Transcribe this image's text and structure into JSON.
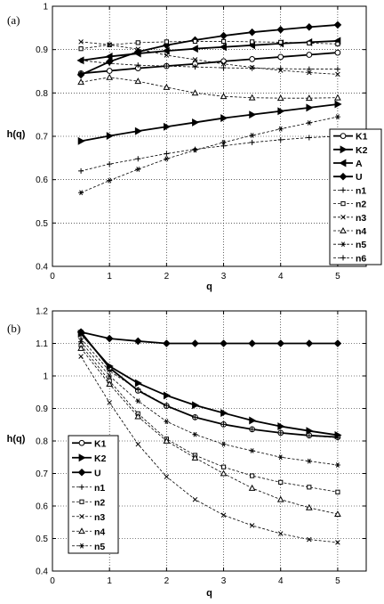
{
  "chart_data": [
    {
      "type": "line",
      "panel_label": "(a)",
      "xlabel": "q",
      "ylabel": "h(q)",
      "xlim": [
        0,
        5.5
      ],
      "ylim": [
        0.4,
        1.0
      ],
      "x_ticks": [
        "0",
        "1",
        "2",
        "3",
        "4",
        "5"
      ],
      "y_ticks": [
        "0.4",
        "0.5",
        "0.6",
        "0.7",
        "0.8",
        "0.9",
        "1"
      ],
      "grid": true,
      "legend": "right",
      "x": [
        0.5,
        1,
        1.5,
        2,
        2.5,
        3,
        3.5,
        4,
        4.5,
        5
      ],
      "series": [
        {
          "name": "K1",
          "marker": "circle",
          "style": "solid",
          "values": [
            0.845,
            0.851,
            0.857,
            0.862,
            0.867,
            0.873,
            0.878,
            0.883,
            0.888,
            0.893
          ]
        },
        {
          "name": "K2",
          "marker": "tri-right",
          "style": "solid",
          "values": [
            0.689,
            0.701,
            0.712,
            0.722,
            0.732,
            0.742,
            0.75,
            0.758,
            0.766,
            0.774
          ]
        },
        {
          "name": "A",
          "marker": "tri-left",
          "style": "solid",
          "values": [
            0.875,
            0.884,
            0.891,
            0.897,
            0.902,
            0.906,
            0.91,
            0.914,
            0.917,
            0.92
          ]
        },
        {
          "name": "U",
          "marker": "diamond",
          "style": "solid",
          "values": [
            0.842,
            0.872,
            0.895,
            0.91,
            0.922,
            0.932,
            0.94,
            0.946,
            0.952,
            0.957
          ]
        },
        {
          "name": "n1",
          "marker": "plus",
          "style": "dashed",
          "values": [
            0.875,
            0.868,
            0.864,
            0.862,
            0.86,
            0.858,
            0.857,
            0.856,
            0.855,
            0.855
          ]
        },
        {
          "name": "n2",
          "marker": "square",
          "style": "dashed",
          "values": [
            0.902,
            0.911,
            0.916,
            0.918,
            0.919,
            0.919,
            0.918,
            0.917,
            0.915,
            0.913
          ]
        },
        {
          "name": "n3",
          "marker": "x",
          "style": "dashed",
          "values": [
            0.918,
            0.911,
            0.901,
            0.887,
            0.877,
            0.867,
            0.859,
            0.852,
            0.847,
            0.843
          ]
        },
        {
          "name": "n4",
          "marker": "tri-up",
          "style": "dashed",
          "values": [
            0.825,
            0.836,
            0.827,
            0.813,
            0.8,
            0.792,
            0.789,
            0.788,
            0.788,
            0.789
          ]
        },
        {
          "name": "n5",
          "marker": "star",
          "style": "dashed",
          "values": [
            0.57,
            0.598,
            0.624,
            0.648,
            0.668,
            0.686,
            0.702,
            0.717,
            0.731,
            0.745
          ]
        },
        {
          "name": "n6",
          "marker": "plus",
          "style": "dashed",
          "values": [
            0.62,
            0.636,
            0.648,
            0.66,
            0.67,
            0.678,
            0.686,
            0.692,
            0.697,
            0.7
          ]
        }
      ]
    },
    {
      "type": "line",
      "panel_label": "(b)",
      "xlabel": "q",
      "ylabel": "h(q)",
      "xlim": [
        0,
        5.5
      ],
      "ylim": [
        0.4,
        1.2
      ],
      "x_ticks": [
        "0",
        "1",
        "2",
        "3",
        "4",
        "5"
      ],
      "y_ticks": [
        "0.4",
        "0.5",
        "0.6",
        "0.7",
        "0.8",
        "0.9",
        "1",
        "1.1",
        "1.2"
      ],
      "grid": true,
      "legend": "left",
      "x": [
        0.5,
        1,
        1.5,
        2,
        2.5,
        3,
        3.5,
        4,
        4.5,
        5
      ],
      "series": [
        {
          "name": "K1",
          "marker": "circle",
          "style": "solid",
          "values": [
            1.135,
            1.025,
            0.955,
            0.908,
            0.873,
            0.851,
            0.836,
            0.825,
            0.817,
            0.812
          ]
        },
        {
          "name": "K2",
          "marker": "tri-right",
          "style": "solid",
          "values": [
            1.13,
            1.03,
            0.978,
            0.94,
            0.91,
            0.886,
            0.863,
            0.845,
            0.831,
            0.818
          ]
        },
        {
          "name": "U",
          "marker": "diamond",
          "style": "solid",
          "values": [
            1.135,
            1.115,
            1.107,
            1.1,
            1.1,
            1.1,
            1.1,
            1.1,
            1.1,
            1.1
          ]
        },
        {
          "name": "n1",
          "marker": "plus",
          "style": "dashed",
          "values": [
            1.115,
            1.015,
            0.958,
            0.909,
            0.873,
            0.851,
            0.836,
            0.825,
            0.816,
            0.81
          ]
        },
        {
          "name": "n2",
          "marker": "square",
          "style": "dashed",
          "values": [
            1.095,
            0.985,
            0.884,
            0.806,
            0.756,
            0.72,
            0.693,
            0.673,
            0.658,
            0.643
          ]
        },
        {
          "name": "n3",
          "marker": "x",
          "style": "dashed",
          "values": [
            1.06,
            0.918,
            0.79,
            0.69,
            0.62,
            0.572,
            0.54,
            0.515,
            0.497,
            0.488
          ]
        },
        {
          "name": "n4",
          "marker": "tri-up",
          "style": "dashed",
          "values": [
            1.085,
            0.975,
            0.875,
            0.8,
            0.748,
            0.7,
            0.655,
            0.62,
            0.595,
            0.575
          ]
        },
        {
          "name": "n5",
          "marker": "star",
          "style": "dashed",
          "values": [
            1.105,
            1.0,
            0.923,
            0.86,
            0.82,
            0.79,
            0.77,
            0.75,
            0.738,
            0.726
          ]
        }
      ]
    }
  ]
}
